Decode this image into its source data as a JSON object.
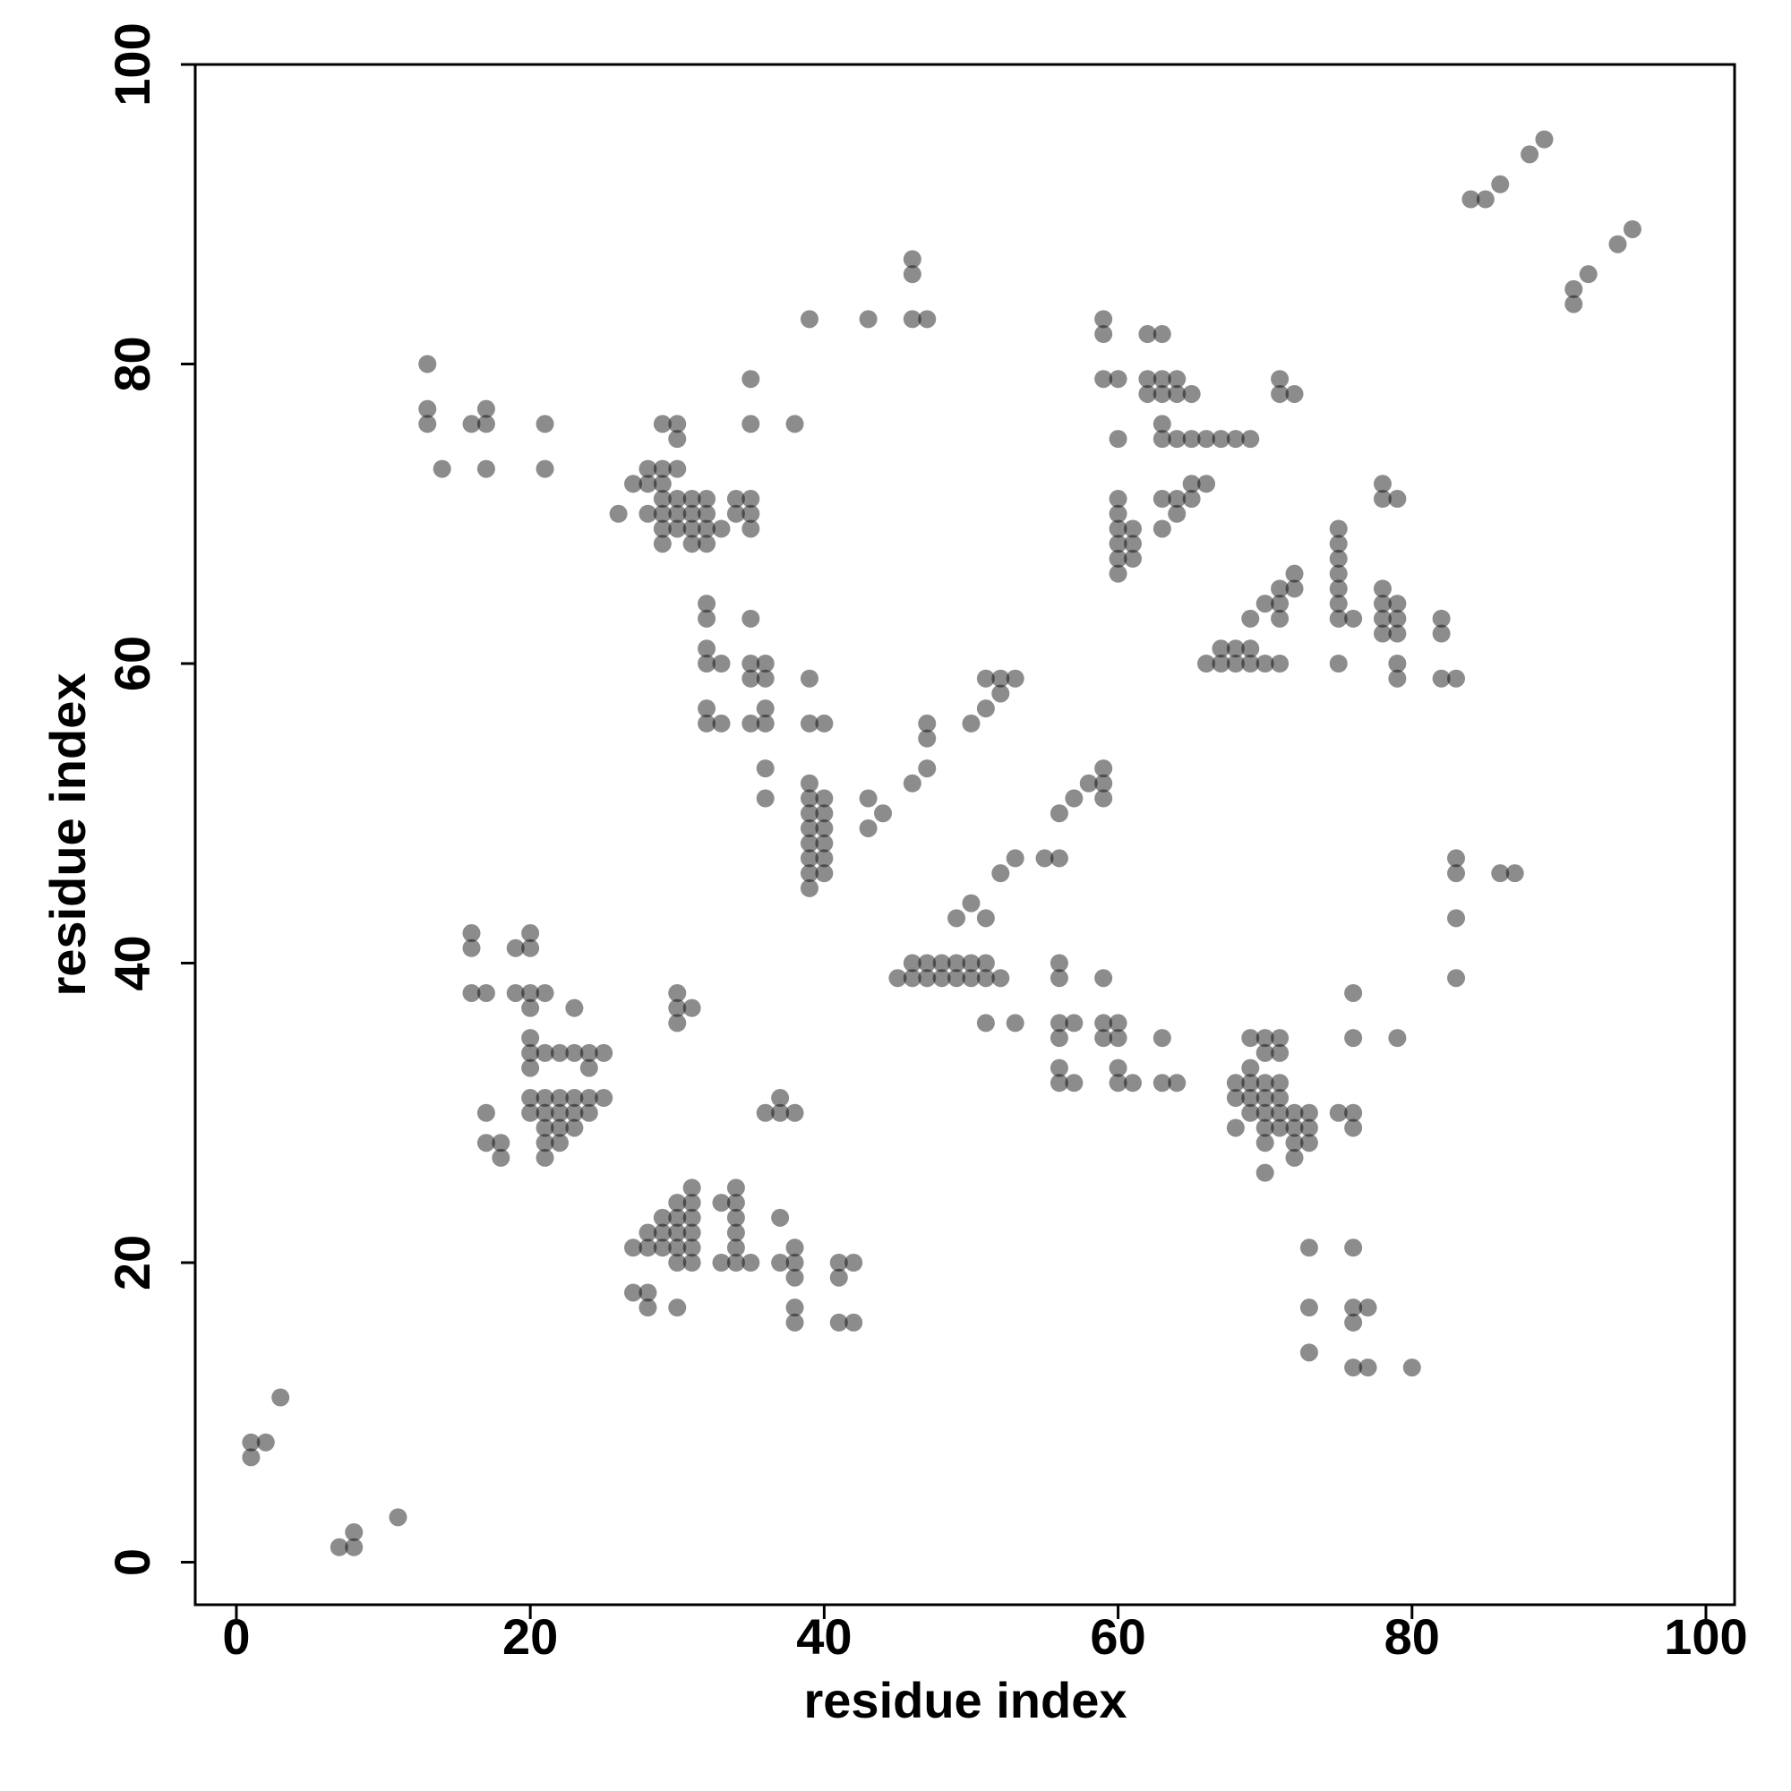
{
  "chart_data": {
    "type": "scatter",
    "x_label": "residue index",
    "y_label": "residue index",
    "x": [
      1,
      1,
      2,
      3,
      7,
      8,
      8,
      11,
      13,
      13,
      13,
      14,
      16,
      17,
      17,
      17,
      21,
      21,
      16,
      16,
      16,
      17,
      19,
      20,
      20,
      19,
      20,
      20,
      21,
      20,
      20,
      20,
      21,
      22,
      23,
      24,
      25,
      23,
      24,
      20,
      21,
      22,
      23,
      24,
      25,
      20,
      21,
      22,
      23,
      24,
      21,
      22,
      23,
      21,
      22,
      21,
      17,
      17,
      18,
      18,
      27,
      28,
      28,
      29,
      29,
      29,
      30,
      30,
      30,
      30,
      30,
      31,
      31,
      31,
      31,
      31,
      31,
      27,
      28,
      28,
      30,
      33,
      34,
      34,
      34,
      34,
      34,
      34,
      33,
      35,
      37,
      37,
      38,
      38,
      38,
      38,
      38,
      41,
      41,
      42,
      41,
      42,
      36,
      37,
      37,
      38,
      30,
      30,
      31,
      30,
      26,
      27,
      28,
      28,
      28,
      29,
      29,
      29,
      29,
      29,
      29,
      29,
      30,
      30,
      30,
      30,
      30,
      30,
      31,
      31,
      31,
      31,
      32,
      32,
      32,
      32,
      33,
      34,
      34,
      35,
      35,
      35,
      35,
      35,
      38,
      32,
      32,
      32,
      32,
      33,
      32,
      32,
      33,
      35,
      35,
      35,
      36,
      36,
      36,
      35,
      36,
      36,
      36,
      39,
      39,
      40,
      39,
      39,
      39,
      39,
      39,
      39,
      39,
      39,
      40,
      40,
      40,
      40,
      40,
      40,
      43,
      43,
      44,
      46,
      47,
      47,
      47,
      50,
      51,
      51,
      52,
      52,
      53,
      39,
      43,
      46,
      46,
      46,
      47,
      45,
      46,
      46,
      47,
      47,
      48,
      48,
      49,
      49,
      50,
      50,
      51,
      51,
      52,
      49,
      50,
      51,
      52,
      53,
      55,
      56,
      56,
      57,
      58,
      59,
      59,
      59,
      51,
      53,
      56,
      56,
      56,
      56,
      57,
      56,
      56,
      57,
      59,
      59,
      59,
      60,
      60,
      60,
      60,
      61,
      63,
      63,
      64,
      69,
      70,
      71,
      69,
      70,
      71,
      68,
      69,
      70,
      71,
      68,
      69,
      70,
      71,
      69,
      70,
      71,
      72,
      73,
      68,
      70,
      71,
      72,
      73,
      70,
      72,
      73,
      72,
      70,
      75,
      76,
      76,
      76,
      76,
      79,
      73,
      73,
      73,
      76,
      76,
      76,
      77,
      76,
      77,
      80,
      83,
      83,
      83,
      83,
      86,
      87,
      59,
      59,
      59,
      60,
      60,
      60,
      60,
      60,
      60,
      60,
      60,
      61,
      61,
      61,
      62,
      63,
      62,
      62,
      63,
      63,
      64,
      64,
      65,
      63,
      63,
      64,
      65,
      66,
      67,
      68,
      69,
      63,
      64,
      64,
      65,
      65,
      66,
      63,
      71,
      71,
      72,
      66,
      67,
      67,
      68,
      68,
      69,
      69,
      70,
      71,
      69,
      70,
      71,
      71,
      71,
      72,
      72,
      75,
      75,
      75,
      75,
      75,
      75,
      75,
      76,
      75,
      78,
      78,
      79,
      78,
      79,
      78,
      79,
      79,
      79,
      78,
      78,
      79,
      82,
      82,
      82,
      83,
      84,
      85,
      86,
      88,
      89,
      91,
      91,
      92,
      94,
      95
    ],
    "values": [
      8,
      7,
      8,
      11,
      1,
      1,
      2,
      3,
      80,
      77,
      76,
      73,
      76,
      77,
      76,
      73,
      76,
      73,
      42,
      41,
      38,
      38,
      41,
      42,
      41,
      38,
      38,
      37,
      38,
      35,
      34,
      33,
      34,
      34,
      34,
      34,
      34,
      37,
      33,
      31,
      31,
      31,
      31,
      31,
      31,
      30,
      30,
      30,
      30,
      30,
      29,
      29,
      29,
      28,
      28,
      27,
      30,
      28,
      28,
      27,
      21,
      21,
      22,
      21,
      22,
      23,
      21,
      22,
      23,
      24,
      20,
      21,
      22,
      23,
      24,
      25,
      20,
      18,
      18,
      17,
      17,
      24,
      24,
      25,
      23,
      22,
      21,
      20,
      20,
      20,
      23,
      20,
      20,
      21,
      19,
      17,
      16,
      20,
      19,
      20,
      16,
      16,
      30,
      30,
      31,
      30,
      38,
      37,
      37,
      36,
      70,
      72,
      73,
      72,
      70,
      73,
      72,
      71,
      70,
      69,
      68,
      76,
      76,
      75,
      73,
      71,
      70,
      69,
      71,
      70,
      69,
      68,
      71,
      70,
      69,
      68,
      69,
      71,
      70,
      71,
      70,
      69,
      76,
      79,
      76,
      64,
      63,
      61,
      60,
      60,
      57,
      56,
      56,
      63,
      60,
      59,
      60,
      59,
      57,
      56,
      56,
      53,
      51,
      59,
      56,
      56,
      52,
      51,
      50,
      49,
      48,
      47,
      46,
      45,
      51,
      50,
      49,
      48,
      47,
      46,
      51,
      49,
      50,
      52,
      53,
      55,
      56,
      56,
      57,
      59,
      58,
      59,
      59,
      83,
      83,
      87,
      86,
      83,
      83,
      39,
      39,
      40,
      39,
      40,
      39,
      40,
      39,
      40,
      39,
      40,
      39,
      40,
      39,
      43,
      44,
      43,
      46,
      47,
      47,
      47,
      50,
      51,
      52,
      52,
      51,
      53,
      36,
      36,
      40,
      39,
      36,
      35,
      36,
      33,
      32,
      32,
      39,
      36,
      35,
      36,
      35,
      33,
      32,
      32,
      35,
      32,
      32,
      35,
      35,
      35,
      33,
      34,
      34,
      32,
      32,
      32,
      32,
      31,
      31,
      31,
      31,
      30,
      30,
      30,
      30,
      30,
      29,
      29,
      29,
      29,
      29,
      28,
      28,
      28,
      27,
      26,
      30,
      30,
      29,
      35,
      38,
      35,
      21,
      17,
      14,
      21,
      17,
      16,
      17,
      13,
      13,
      13,
      47,
      46,
      43,
      39,
      46,
      46,
      83,
      82,
      79,
      79,
      75,
      71,
      70,
      69,
      68,
      67,
      66,
      69,
      68,
      67,
      82,
      82,
      79,
      78,
      79,
      78,
      79,
      78,
      78,
      76,
      75,
      75,
      75,
      75,
      75,
      75,
      75,
      71,
      71,
      70,
      72,
      71,
      72,
      69,
      79,
      78,
      78,
      60,
      61,
      60,
      61,
      60,
      61,
      60,
      60,
      60,
      63,
      64,
      64,
      63,
      65,
      65,
      66,
      69,
      68,
      67,
      66,
      65,
      64,
      63,
      63,
      60,
      65,
      64,
      64,
      63,
      63,
      62,
      62,
      60,
      59,
      72,
      71,
      71,
      63,
      62,
      59,
      59,
      91,
      91,
      92,
      94,
      95,
      85,
      84,
      86,
      88,
      89
    ],
    "color": "#000000",
    "opacity": 0.45,
    "xlim": [
      -2.8,
      101.95
    ],
    "ylim": [
      -2.84,
      100
    ],
    "xticks": [
      0,
      20,
      40,
      60,
      80,
      100
    ],
    "yticks": [
      0,
      20,
      40,
      60,
      80,
      100
    ]
  }
}
